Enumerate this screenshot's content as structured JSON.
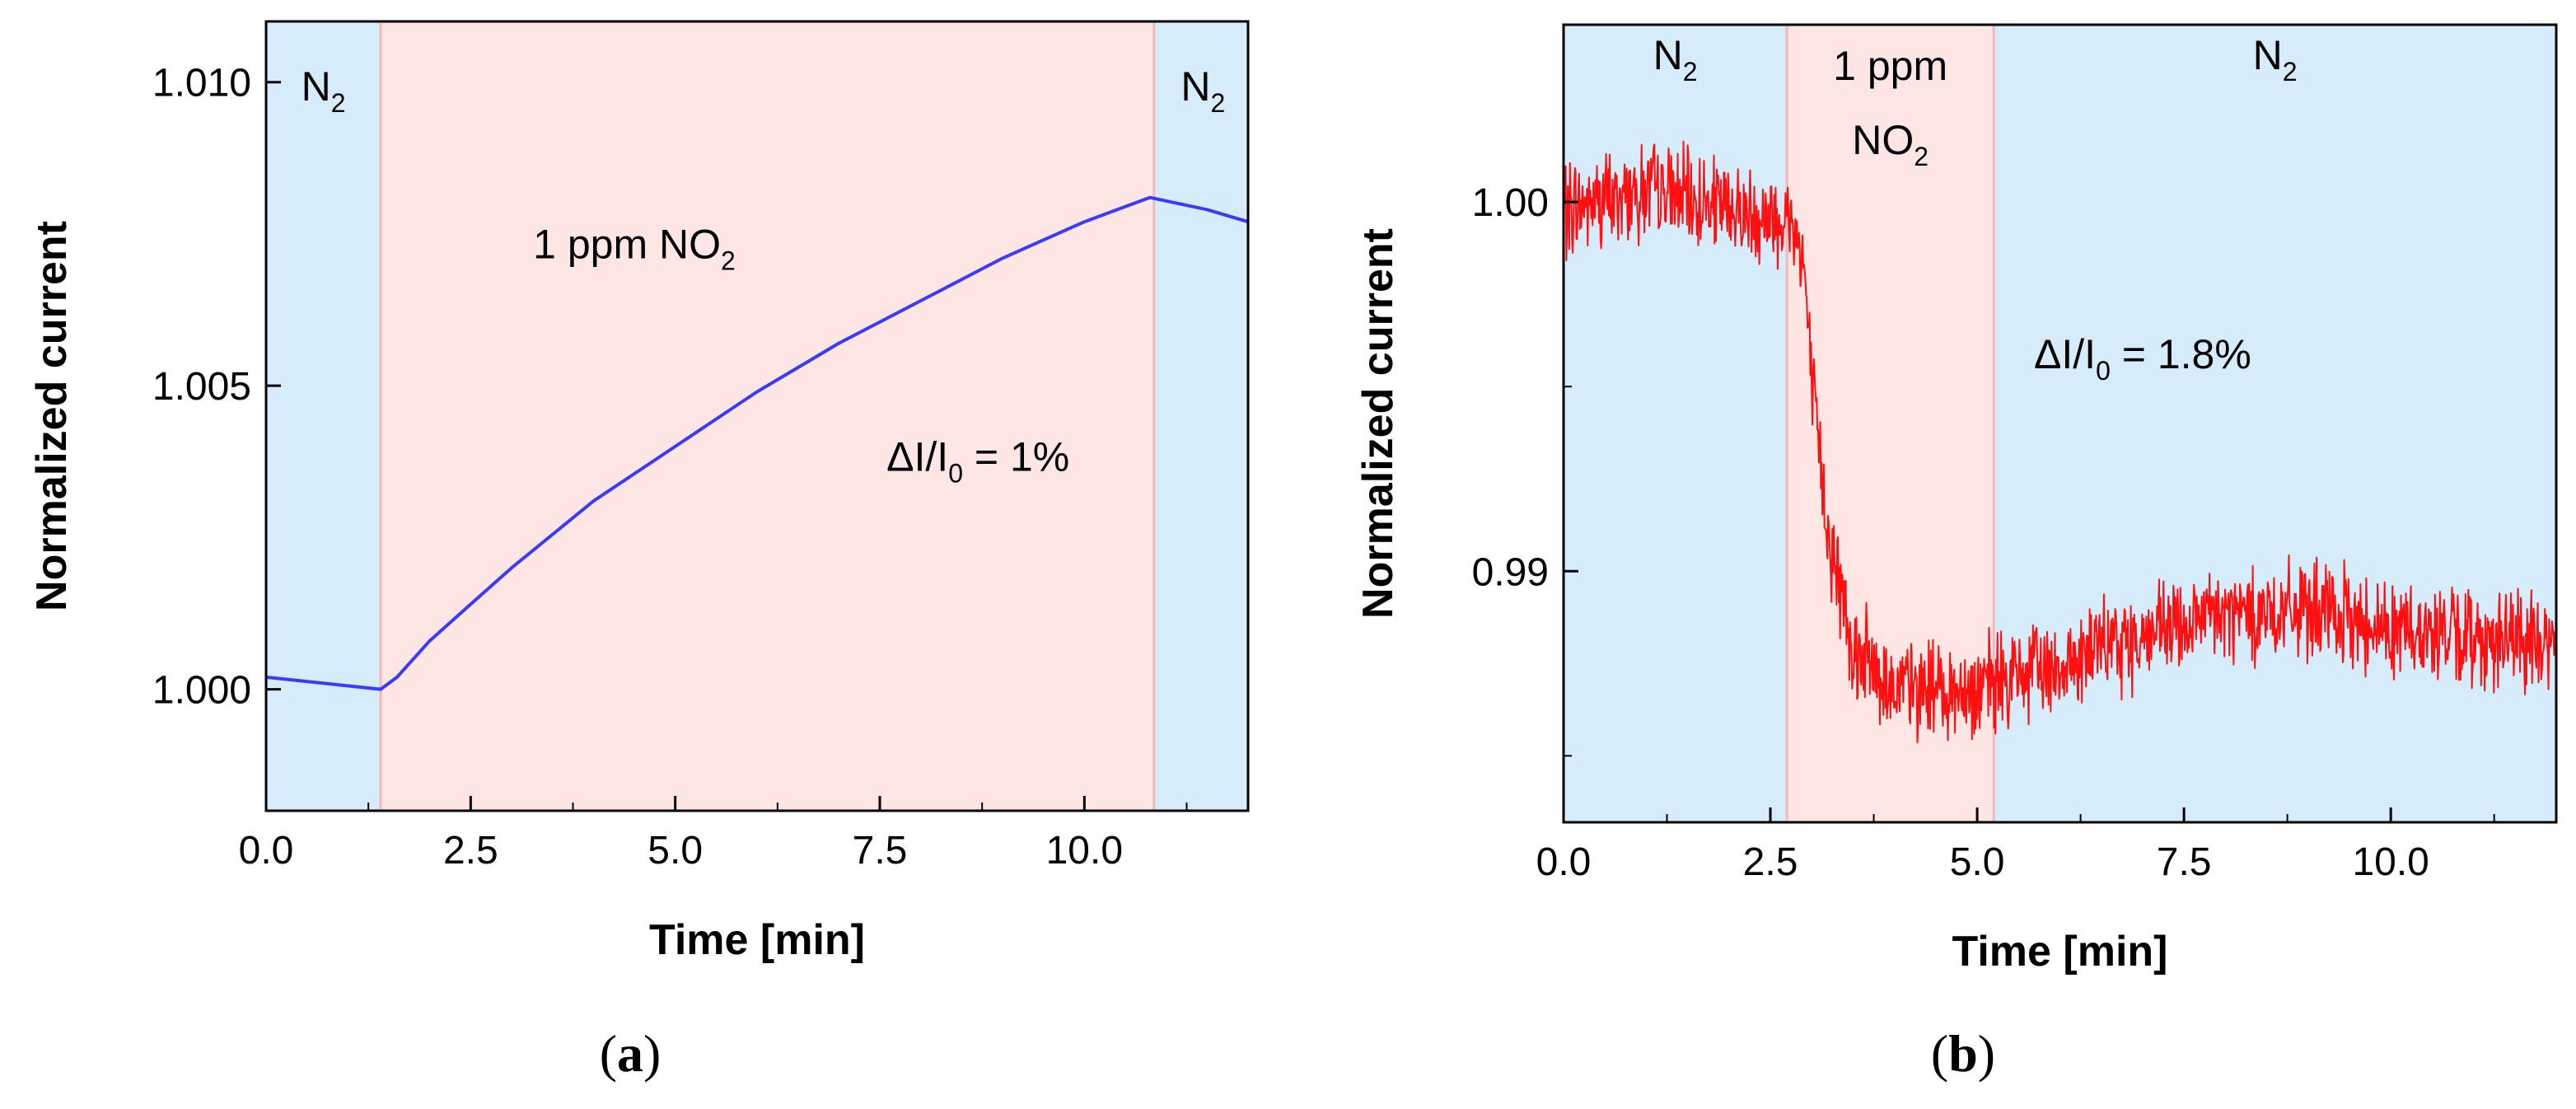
{
  "colors": {
    "n2_region": "#d6ecfa",
    "no2_region": "#fde6e4",
    "region_border": "#f4b8b8",
    "blue_line": "#3b3bff",
    "red_line": "#ff1010"
  },
  "chart_data": [
    {
      "id": "a",
      "type": "line",
      "caption": {
        "open": "(",
        "letter": "a",
        "close": ")"
      },
      "xlabel": "Time [min]",
      "ylabel": "Normalized current",
      "xlim": [
        0,
        12
      ],
      "ylim": [
        0.998,
        1.011
      ],
      "xticks": [
        0,
        2.5,
        5,
        7.5,
        10
      ],
      "xtick_labels": [
        "0.0",
        "2.5",
        "5.0",
        "7.5",
        "10.0"
      ],
      "yticks": [
        1.0,
        1.005,
        1.01
      ],
      "ytick_labels": [
        "1.000",
        "1.005",
        "1.010"
      ],
      "series": [
        {
          "name": "response",
          "color": "#3b3bff",
          "x": [
            0,
            1.4,
            1.6,
            2.0,
            2.5,
            3.0,
            4.0,
            5.0,
            6.0,
            7.0,
            8.0,
            9.0,
            10.0,
            10.8,
            11.5,
            12.0
          ],
          "y": [
            1.0002,
            1.0,
            1.0002,
            1.0008,
            1.0014,
            1.002,
            1.0031,
            1.004,
            1.0049,
            1.0057,
            1.0064,
            1.0071,
            1.0077,
            1.0081,
            1.0079,
            1.0077
          ]
        }
      ],
      "regions": [
        {
          "label": "N",
          "sub": "2",
          "from": 0,
          "to": 1.4,
          "kind": "n2",
          "label_x": 0.7,
          "label_y": 1.0097
        },
        {
          "label": "1 ppm NO",
          "sub": "2",
          "from": 1.4,
          "to": 10.85,
          "kind": "no2",
          "label_x": 4.5,
          "label_y": 1.0071
        },
        {
          "label": "N",
          "sub": "2",
          "from": 10.85,
          "to": 12,
          "kind": "n2",
          "label_x": 11.45,
          "label_y": 1.0097
        }
      ],
      "annotation": {
        "main": "ΔI/I",
        "sub": "0",
        "tail": " = 1%",
        "color": "#3b3bff",
        "x": 8.7,
        "y": 1.0036
      }
    },
    {
      "id": "b",
      "type": "line",
      "caption": {
        "open": "(",
        "letter": "b",
        "close": ")"
      },
      "xlabel": "Time [min]",
      "ylabel": "Normalized current",
      "xlim": [
        0,
        12
      ],
      "ylim": [
        0.9832,
        1.0048
      ],
      "xticks": [
        0,
        2.5,
        5,
        7.5,
        10
      ],
      "xtick_labels": [
        "0.0",
        "2.5",
        "5.0",
        "7.5",
        "10.0"
      ],
      "yticks": [
        1.0,
        0.99
      ],
      "ytick_labels": [
        "1.00",
        "0.99"
      ],
      "minor_yticks": [
        0.995,
        0.985
      ],
      "series": [
        {
          "name": "response",
          "color": "#ff1010",
          "noisy": true,
          "noise_amplitude": 0.0011,
          "x": [
            0,
            1.0,
            2.0,
            2.75,
            2.9,
            3.0,
            3.2,
            3.5,
            4.0,
            5.0,
            6.0,
            7.0,
            8.0,
            9.0,
            10.0,
            11.0,
            12.0
          ],
          "y": [
            0.9998,
            1.0003,
            0.9998,
            0.9995,
            0.9985,
            0.995,
            0.991,
            0.988,
            0.9868,
            0.9868,
            0.9875,
            0.9882,
            0.9888,
            0.9889,
            0.9885,
            0.9882,
            0.988
          ]
        }
      ],
      "regions": [
        {
          "label": "N",
          "sub": "2",
          "from": 0,
          "to": 2.7,
          "kind": "n2",
          "label_x": 1.35,
          "label_y": 1.0036
        },
        {
          "label": "1 ppm",
          "label2": "NO",
          "sub": "2",
          "from": 2.7,
          "to": 5.2,
          "kind": "no2",
          "label_x": 3.95,
          "label_y": 1.0033,
          "label2_y": 1.0013
        },
        {
          "label": "N",
          "sub": "2",
          "from": 5.2,
          "to": 12,
          "kind": "n2",
          "label_x": 8.6,
          "label_y": 1.0036
        }
      ],
      "annotation": {
        "main": "ΔI/I",
        "sub": "0",
        "tail": " = 1.8%",
        "color": "#ff1010",
        "x": 7.0,
        "y": 0.9955
      }
    }
  ]
}
